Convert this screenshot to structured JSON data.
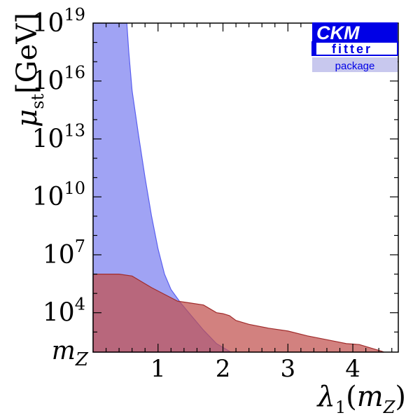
{
  "chart_data": {
    "type": "area",
    "xlabel": "λ1(mZ)",
    "ylabel": "μst [GeV]",
    "xlim": [
      0.0,
      4.7
    ],
    "ylim_log10": [
      1.96,
      19.0
    ],
    "x_ticks": [
      1,
      2,
      3,
      4
    ],
    "y_ticks": [
      {
        "log10": 1.96,
        "label": "mZ"
      },
      {
        "log10": 4,
        "label": "10^4"
      },
      {
        "log10": 7,
        "label": "10^7"
      },
      {
        "log10": 10,
        "label": "10^10"
      },
      {
        "log10": 13,
        "label": "10^13"
      },
      {
        "log10": 16,
        "label": "10^16"
      },
      {
        "log10": 19,
        "label": "10^19"
      }
    ],
    "grid": false,
    "legend": "none",
    "regions": [
      {
        "color": "#7b7ff0",
        "outline": "#5a5ff0",
        "boundary": [
          [
            0.0,
            19.0
          ],
          [
            0.52,
            19.0
          ],
          [
            0.55,
            17.5
          ],
          [
            0.6,
            15.5
          ],
          [
            0.7,
            13.2
          ],
          [
            0.8,
            11.0
          ],
          [
            0.9,
            9.0
          ],
          [
            1.0,
            7.3
          ],
          [
            1.1,
            6.0
          ],
          [
            1.2,
            5.2
          ],
          [
            1.35,
            4.5
          ],
          [
            1.5,
            3.9
          ],
          [
            1.7,
            3.1
          ],
          [
            1.9,
            2.4
          ],
          [
            2.05,
            2.1
          ],
          [
            2.12,
            1.96
          ]
        ]
      },
      {
        "color": "#c1504e",
        "outline": "#a02c2c",
        "boundary": [
          [
            0.0,
            6.0
          ],
          [
            0.4,
            6.0
          ],
          [
            0.6,
            5.9
          ],
          [
            0.75,
            5.6
          ],
          [
            0.9,
            5.3
          ],
          [
            1.1,
            4.95
          ],
          [
            1.3,
            4.6
          ],
          [
            1.5,
            4.5
          ],
          [
            1.7,
            4.4
          ],
          [
            1.8,
            4.2
          ],
          [
            1.9,
            4.0
          ],
          [
            2.0,
            3.95
          ],
          [
            2.1,
            3.85
          ],
          [
            2.2,
            3.6
          ],
          [
            2.4,
            3.4
          ],
          [
            2.7,
            3.2
          ],
          [
            3.0,
            3.05
          ],
          [
            3.3,
            2.8
          ],
          [
            3.6,
            2.6
          ],
          [
            3.9,
            2.4
          ],
          [
            4.1,
            2.35
          ],
          [
            4.3,
            2.15
          ],
          [
            4.45,
            2.0
          ],
          [
            4.48,
            1.96
          ]
        ]
      }
    ]
  },
  "logo": {
    "line1": "CKM",
    "line2": "fitter",
    "line3": "package",
    "color_main": "#0000e6",
    "color_light": "#c8c8ee"
  }
}
